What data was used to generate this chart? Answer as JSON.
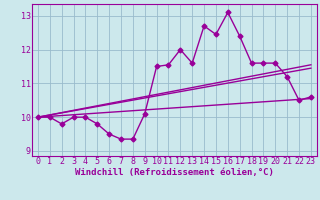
{
  "main_x": [
    0,
    1,
    2,
    3,
    4,
    5,
    6,
    7,
    8,
    9,
    10,
    11,
    12,
    13,
    14,
    15,
    16,
    17,
    18,
    19,
    20,
    21,
    22,
    23
  ],
  "main_y": [
    10.0,
    10.0,
    9.8,
    10.0,
    10.0,
    9.8,
    9.5,
    9.35,
    9.35,
    10.1,
    11.5,
    11.55,
    12.0,
    11.6,
    12.7,
    12.45,
    13.1,
    12.4,
    11.6,
    11.6,
    11.6,
    11.2,
    10.5,
    10.6
  ],
  "line2_x": [
    0,
    23
  ],
  "line2_y": [
    10.0,
    10.55
  ],
  "line3_x": [
    0,
    23
  ],
  "line3_y": [
    10.0,
    11.55
  ],
  "line4_x": [
    0,
    23
  ],
  "line4_y": [
    10.0,
    11.45
  ],
  "bg_color": "#cce8ec",
  "line_color": "#990099",
  "grid_color": "#99bbcc",
  "xlabel": "Windchill (Refroidissement éolien,°C)",
  "xlim": [
    -0.5,
    23.5
  ],
  "ylim": [
    8.85,
    13.35
  ],
  "yticks": [
    9,
    10,
    11,
    12,
    13
  ],
  "xticks": [
    0,
    1,
    2,
    3,
    4,
    5,
    6,
    7,
    8,
    9,
    10,
    11,
    12,
    13,
    14,
    15,
    16,
    17,
    18,
    19,
    20,
    21,
    22,
    23
  ],
  "marker": "D",
  "markersize": 2.5,
  "linewidth": 1.0,
  "xlabel_fontsize": 6.5,
  "tick_fontsize": 6.0
}
